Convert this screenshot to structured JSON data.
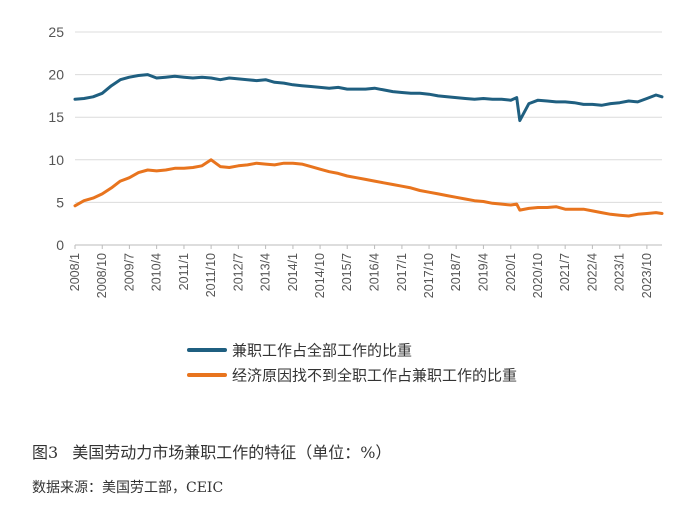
{
  "caption": {
    "figure_number": "图3",
    "title": "美国劳动力市场兼职工作的特征（单位：%）"
  },
  "source": "数据来源：美国劳工部，CEIC",
  "chart_data": {
    "type": "line",
    "title": "美国劳动力市场兼职工作的特征（单位：%）",
    "xlabel": "",
    "ylabel": "",
    "ylim": [
      0,
      25
    ],
    "yticks": [
      "0",
      "5",
      "10",
      "15",
      "20",
      "25"
    ],
    "xticks": [
      "2008/1",
      "2008/10",
      "2009/7",
      "2010/4",
      "2011/1",
      "2011/10",
      "2012/7",
      "2013/4",
      "2014/1",
      "2014/10",
      "2015/7",
      "2016/4",
      "2017/1",
      "2017/10",
      "2018/7",
      "2019/4",
      "2020/1",
      "2020/10",
      "2021/7",
      "2022/4",
      "2023/1",
      "2023/10"
    ],
    "grid": "horizontal",
    "legend_position": "bottom",
    "x": [
      "2008-01",
      "2008-04",
      "2008-07",
      "2008-10",
      "2009-01",
      "2009-04",
      "2009-07",
      "2009-10",
      "2010-01",
      "2010-04",
      "2010-07",
      "2010-10",
      "2011-01",
      "2011-04",
      "2011-07",
      "2011-10",
      "2012-01",
      "2012-04",
      "2012-07",
      "2012-10",
      "2013-01",
      "2013-04",
      "2013-07",
      "2013-10",
      "2014-01",
      "2014-04",
      "2014-07",
      "2014-10",
      "2015-01",
      "2015-04",
      "2015-07",
      "2015-10",
      "2016-01",
      "2016-04",
      "2016-07",
      "2016-10",
      "2017-01",
      "2017-04",
      "2017-07",
      "2017-10",
      "2018-01",
      "2018-04",
      "2018-07",
      "2018-10",
      "2019-01",
      "2019-04",
      "2019-07",
      "2019-10",
      "2020-01",
      "2020-03",
      "2020-04",
      "2020-07",
      "2020-10",
      "2021-01",
      "2021-04",
      "2021-07",
      "2021-10",
      "2022-01",
      "2022-04",
      "2022-07",
      "2022-10",
      "2023-01",
      "2023-04",
      "2023-07",
      "2023-10",
      "2024-01",
      "2024-03"
    ],
    "series": [
      {
        "name": "兼职工作占全部工作的比重",
        "color": "#1f5f80",
        "values": [
          17.1,
          17.2,
          17.4,
          17.8,
          18.7,
          19.4,
          19.7,
          19.9,
          20.0,
          19.6,
          19.7,
          19.8,
          19.7,
          19.6,
          19.7,
          19.6,
          19.4,
          19.6,
          19.5,
          19.4,
          19.3,
          19.4,
          19.1,
          19.0,
          18.8,
          18.7,
          18.6,
          18.5,
          18.4,
          18.5,
          18.3,
          18.3,
          18.3,
          18.4,
          18.2,
          18.0,
          17.9,
          17.8,
          17.8,
          17.7,
          17.5,
          17.4,
          17.3,
          17.2,
          17.1,
          17.2,
          17.1,
          17.1,
          17.0,
          17.3,
          14.6,
          16.6,
          17.0,
          16.9,
          16.8,
          16.8,
          16.7,
          16.5,
          16.5,
          16.4,
          16.6,
          16.7,
          16.9,
          16.8,
          17.2,
          17.6,
          17.4
        ]
      },
      {
        "name": "经济原因找不到全职工作占兼职工作的比重",
        "color": "#e8741e",
        "values": [
          4.6,
          5.2,
          5.5,
          6.0,
          6.7,
          7.5,
          7.9,
          8.5,
          8.8,
          8.7,
          8.8,
          9.0,
          9.0,
          9.1,
          9.3,
          10.0,
          9.2,
          9.1,
          9.3,
          9.4,
          9.6,
          9.5,
          9.4,
          9.6,
          9.6,
          9.5,
          9.2,
          8.9,
          8.6,
          8.4,
          8.1,
          7.9,
          7.7,
          7.5,
          7.3,
          7.1,
          6.9,
          6.7,
          6.4,
          6.2,
          6.0,
          5.8,
          5.6,
          5.4,
          5.2,
          5.1,
          4.9,
          4.8,
          4.7,
          4.8,
          4.1,
          4.3,
          4.4,
          4.4,
          4.5,
          4.2,
          4.2,
          4.2,
          4.0,
          3.8,
          3.6,
          3.5,
          3.4,
          3.6,
          3.7,
          3.8,
          3.7
        ]
      }
    ]
  }
}
